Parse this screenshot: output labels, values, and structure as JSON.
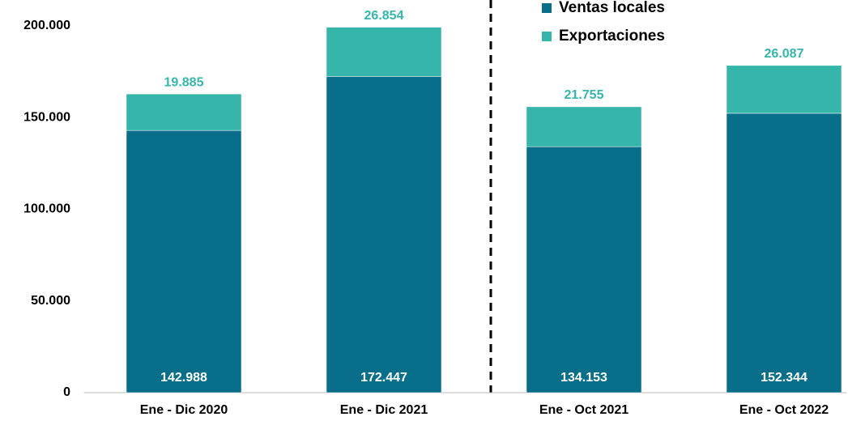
{
  "chart_data": {
    "type": "stacked_bar",
    "categories": [
      "Ene - Dic 2020",
      "Ene - Dic 2021",
      "Ene - Oct 2021",
      "Ene - Oct 2022"
    ],
    "series": [
      {
        "name": "Ventas locales",
        "color": "#086e8a",
        "values": [
          142988,
          172447,
          134153,
          152344
        ],
        "value_labels": [
          "142.988",
          "172.447",
          "134.153",
          "152.344"
        ]
      },
      {
        "name": "Exportaciones",
        "color": "#36b6aa",
        "values": [
          19885,
          26854,
          21755,
          26087
        ],
        "value_labels": [
          "19.885",
          "26.854",
          "21.755",
          "26.087"
        ]
      }
    ],
    "ylim": [
      0,
      200000
    ],
    "yticks": [
      0,
      {
        "value": 50000,
        "label": "50.000"
      },
      {
        "value": 100000,
        "label": "100.000"
      },
      {
        "value": 150000,
        "label": "150.000"
      },
      {
        "value": 200000,
        "label": "200.000"
      }
    ],
    "grid": false,
    "legend": "top-right"
  }
}
